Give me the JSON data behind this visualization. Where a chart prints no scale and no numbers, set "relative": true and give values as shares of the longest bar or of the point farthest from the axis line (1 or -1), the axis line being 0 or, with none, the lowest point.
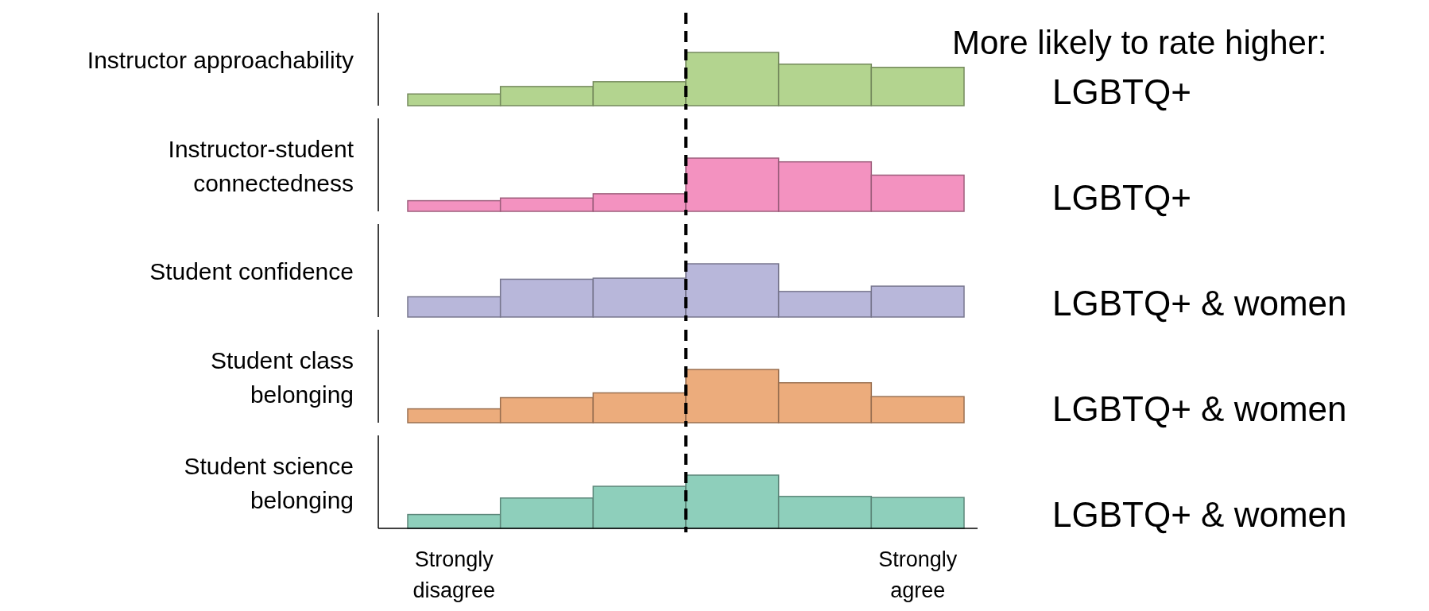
{
  "chart_data": [
    {
      "type": "bar",
      "relative": true,
      "ylabel": "Instructor approachability",
      "categories": [
        null,
        null,
        null,
        null,
        null,
        null
      ],
      "values": [
        0.22,
        0.36,
        0.45,
        1,
        0.78,
        0.72
      ],
      "color": "#b3d48f",
      "tick_labels": false,
      "annotations": [
        "More likely to rate higher:",
        "LGBTQ+"
      ]
    },
    {
      "type": "bar",
      "relative": true,
      "ylabel": "Instructor-student\nconnectedness",
      "categories": [
        null,
        null,
        null,
        null,
        null,
        null
      ],
      "values": [
        0.2,
        0.25,
        0.33,
        1,
        0.93,
        0.68
      ],
      "color": "#f392c0",
      "tick_labels": false,
      "annotations": [
        "LGBTQ+"
      ]
    },
    {
      "type": "bar",
      "relative": true,
      "ylabel": "Student confidence",
      "categories": [
        null,
        null,
        null,
        null,
        null,
        null
      ],
      "values": [
        0.38,
        0.71,
        0.73,
        1,
        0.48,
        0.58
      ],
      "color": "#b8b7da",
      "tick_labels": false,
      "annotations": [
        "LGBTQ+ & women"
      ]
    },
    {
      "type": "bar",
      "relative": true,
      "ylabel": "Student class\nbelonging",
      "categories": [
        null,
        null,
        null,
        null,
        null,
        null
      ],
      "values": [
        0.26,
        0.47,
        0.56,
        1,
        0.75,
        0.49
      ],
      "color": "#ecac7c",
      "tick_labels": false,
      "annotations": [
        "LGBTQ+ & women"
      ]
    },
    {
      "type": "bar",
      "relative": true,
      "ylabel": "Student science\nbelonging",
      "categories": [
        "Strongly\ndisagree",
        null,
        null,
        null,
        null,
        "Strongly\nagree"
      ],
      "values": [
        0.26,
        0.57,
        0.79,
        1,
        0.6,
        0.58
      ],
      "color": "#8ecfbb",
      "annotations": [
        "LGBTQ+ & women"
      ]
    }
  ]
}
